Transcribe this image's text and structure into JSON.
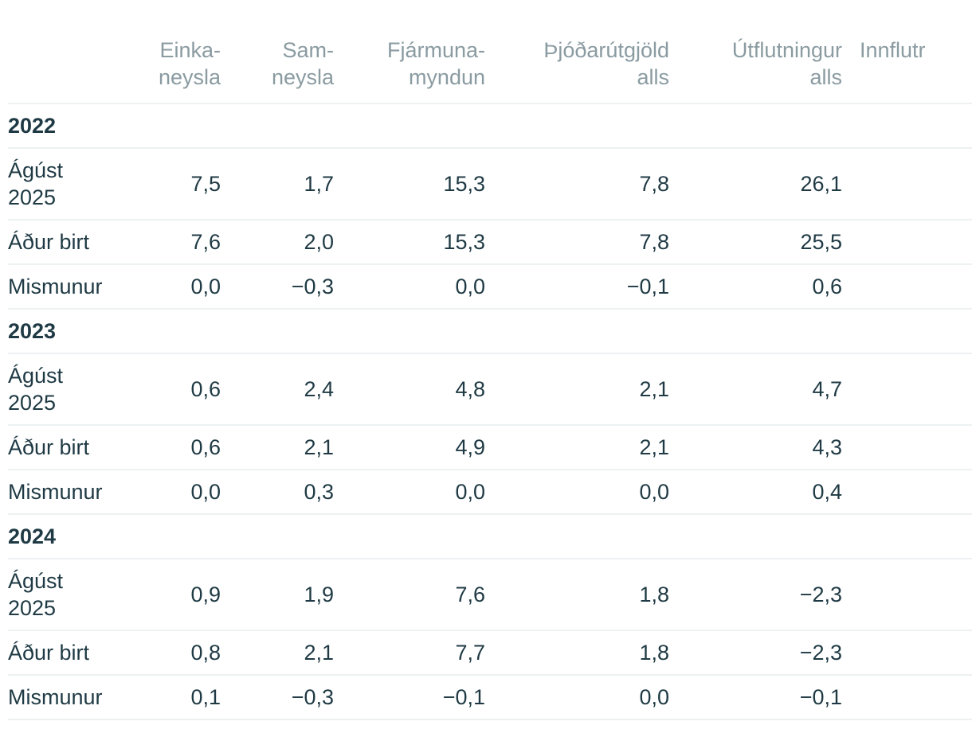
{
  "columns": [
    [
      "Einka-",
      "neysla"
    ],
    [
      "Sam-",
      "neysla"
    ],
    [
      "Fjármuna-",
      "myndun"
    ],
    [
      "Þjóðarútgjöld",
      "alls"
    ],
    [
      "Útflutningur",
      "alls"
    ],
    [
      "Innflutr",
      ""
    ]
  ],
  "row_labels": {
    "revised": [
      "Ágúst",
      "2025"
    ],
    "previous": "Áður birt",
    "difference": "Mismunur"
  },
  "years": [
    {
      "year": "2022",
      "revised": [
        "7,5",
        "1,7",
        "15,3",
        "7,8",
        "26,1",
        ""
      ],
      "previous": [
        "7,6",
        "2,0",
        "15,3",
        "7,8",
        "25,5",
        ""
      ],
      "difference": [
        "0,0",
        "−0,3",
        "0,0",
        "−0,1",
        "0,6",
        ""
      ]
    },
    {
      "year": "2023",
      "revised": [
        "0,6",
        "2,4",
        "4,8",
        "2,1",
        "4,7",
        ""
      ],
      "previous": [
        "0,6",
        "2,1",
        "4,9",
        "2,1",
        "4,3",
        ""
      ],
      "difference": [
        "0,0",
        "0,3",
        "0,0",
        "0,0",
        "0,4",
        ""
      ]
    },
    {
      "year": "2024",
      "revised": [
        "0,9",
        "1,9",
        "7,6",
        "1,8",
        "−2,3",
        ""
      ],
      "previous": [
        "0,8",
        "2,1",
        "7,7",
        "1,8",
        "−2,3",
        ""
      ],
      "difference": [
        "0,1",
        "−0,3",
        "−0,1",
        "0,0",
        "−0,1",
        ""
      ]
    }
  ]
}
